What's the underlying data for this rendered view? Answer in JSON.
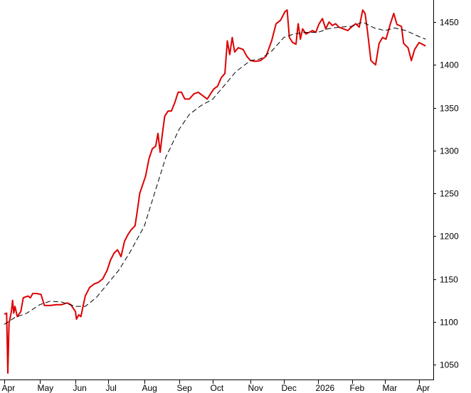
{
  "chart_data": {
    "type": "line",
    "title": "",
    "xlabel": "",
    "ylabel": "",
    "ylim": [
      1040,
      1470
    ],
    "y_ticks": [
      1050,
      1100,
      1150,
      1200,
      1250,
      1300,
      1350,
      1400,
      1450
    ],
    "y_tick_labels": [
      "1050",
      "1100",
      "1150",
      "1200",
      "1250",
      "1300",
      "1350",
      "1400",
      "1450"
    ],
    "x_tick_labels": [
      "Apr",
      "May",
      "Jun",
      "Jul",
      "Aug",
      "Sep",
      "Oct",
      "Nov",
      "Dec",
      "2026",
      "Feb",
      "Mar",
      "Apr"
    ],
    "x_tick_dates": [
      "2025-04-01",
      "2025-05-01",
      "2025-06-01",
      "2025-07-01",
      "2025-08-01",
      "2025-09-01",
      "2025-10-01",
      "2025-11-01",
      "2025-12-01",
      "2026-01-01",
      "2026-02-01",
      "2026-03-01",
      "2026-04-01"
    ],
    "y_axis_position": "right",
    "grid": false,
    "legend": "none",
    "series": [
      {
        "style": "solid",
        "color": "#dd0000",
        "points": [
          [
            "2025-04-01",
            1109
          ],
          [
            "2025-04-03",
            1110
          ],
          [
            "2025-04-04",
            1040
          ],
          [
            "2025-04-05",
            1098
          ],
          [
            "2025-04-07",
            1112
          ],
          [
            "2025-04-08",
            1125
          ],
          [
            "2025-04-09",
            1110
          ],
          [
            "2025-04-10",
            1118
          ],
          [
            "2025-04-12",
            1106
          ],
          [
            "2025-04-15",
            1112
          ],
          [
            "2025-04-17",
            1128
          ],
          [
            "2025-04-21",
            1130
          ],
          [
            "2025-04-23",
            1128
          ],
          [
            "2025-04-25",
            1133
          ],
          [
            "2025-04-28",
            1133
          ],
          [
            "2025-05-02",
            1132
          ],
          [
            "2025-05-05",
            1119
          ],
          [
            "2025-05-10",
            1119
          ],
          [
            "2025-05-15",
            1120
          ],
          [
            "2025-05-20",
            1120
          ],
          [
            "2025-05-25",
            1122
          ],
          [
            "2025-05-28",
            1120
          ],
          [
            "2025-06-01",
            1112
          ],
          [
            "2025-06-02",
            1103
          ],
          [
            "2025-06-04",
            1108
          ],
          [
            "2025-06-06",
            1106
          ],
          [
            "2025-06-08",
            1118
          ],
          [
            "2025-06-10",
            1130
          ],
          [
            "2025-06-14",
            1140
          ],
          [
            "2025-06-18",
            1144
          ],
          [
            "2025-06-22",
            1146
          ],
          [
            "2025-06-26",
            1150
          ],
          [
            "2025-06-30",
            1160
          ],
          [
            "2025-07-03",
            1172
          ],
          [
            "2025-07-06",
            1180
          ],
          [
            "2025-07-09",
            1184
          ],
          [
            "2025-07-12",
            1176
          ],
          [
            "2025-07-15",
            1194
          ],
          [
            "2025-07-18",
            1202
          ],
          [
            "2025-07-21",
            1208
          ],
          [
            "2025-07-24",
            1212
          ],
          [
            "2025-07-26",
            1230
          ],
          [
            "2025-07-28",
            1250
          ],
          [
            "2025-07-30",
            1258
          ],
          [
            "2025-08-02",
            1270
          ],
          [
            "2025-08-05",
            1290
          ],
          [
            "2025-08-08",
            1302
          ],
          [
            "2025-08-11",
            1305
          ],
          [
            "2025-08-13",
            1320
          ],
          [
            "2025-08-15",
            1298
          ],
          [
            "2025-08-17",
            1320
          ],
          [
            "2025-08-19",
            1340
          ],
          [
            "2025-08-22",
            1346
          ],
          [
            "2025-08-25",
            1346
          ],
          [
            "2025-08-28",
            1356
          ],
          [
            "2025-08-31",
            1368
          ],
          [
            "2025-09-03",
            1368
          ],
          [
            "2025-09-06",
            1360
          ],
          [
            "2025-09-10",
            1360
          ],
          [
            "2025-09-14",
            1366
          ],
          [
            "2025-09-18",
            1368
          ],
          [
            "2025-09-22",
            1364
          ],
          [
            "2025-09-26",
            1360
          ],
          [
            "2025-09-30",
            1368
          ],
          [
            "2025-10-02",
            1372
          ],
          [
            "2025-10-05",
            1375
          ],
          [
            "2025-10-08",
            1385
          ],
          [
            "2025-10-11",
            1390
          ],
          [
            "2025-10-13",
            1428
          ],
          [
            "2025-10-15",
            1412
          ],
          [
            "2025-10-17",
            1432
          ],
          [
            "2025-10-19",
            1415
          ],
          [
            "2025-10-22",
            1420
          ],
          [
            "2025-10-26",
            1418
          ],
          [
            "2025-10-29",
            1410
          ],
          [
            "2025-11-01",
            1405
          ],
          [
            "2025-11-05",
            1404
          ],
          [
            "2025-11-10",
            1405
          ],
          [
            "2025-11-15",
            1410
          ],
          [
            "2025-11-20",
            1428
          ],
          [
            "2025-11-24",
            1448
          ],
          [
            "2025-11-28",
            1452
          ],
          [
            "2025-12-02",
            1462
          ],
          [
            "2025-12-04",
            1464
          ],
          [
            "2025-12-06",
            1432
          ],
          [
            "2025-12-09",
            1426
          ],
          [
            "2025-12-12",
            1424
          ],
          [
            "2025-12-14",
            1448
          ],
          [
            "2025-12-16",
            1430
          ],
          [
            "2025-12-18",
            1442
          ],
          [
            "2025-12-21",
            1436
          ],
          [
            "2025-12-24",
            1438
          ],
          [
            "2025-12-27",
            1440
          ],
          [
            "2025-12-30",
            1438
          ],
          [
            "2026-01-02",
            1448
          ],
          [
            "2026-01-05",
            1454
          ],
          [
            "2026-01-08",
            1442
          ],
          [
            "2026-01-11",
            1450
          ],
          [
            "2026-01-14",
            1446
          ],
          [
            "2026-01-17",
            1448
          ],
          [
            "2026-01-20",
            1444
          ],
          [
            "2026-01-24",
            1442
          ],
          [
            "2026-01-28",
            1440
          ],
          [
            "2026-02-01",
            1445
          ],
          [
            "2026-02-04",
            1448
          ],
          [
            "2026-02-07",
            1444
          ],
          [
            "2026-02-10",
            1464
          ],
          [
            "2026-02-12",
            1460
          ],
          [
            "2026-02-14",
            1440
          ],
          [
            "2026-02-17",
            1405
          ],
          [
            "2026-02-21",
            1400
          ],
          [
            "2026-02-24",
            1425
          ],
          [
            "2026-02-27",
            1432
          ],
          [
            "2026-03-02",
            1430
          ],
          [
            "2026-03-06",
            1448
          ],
          [
            "2026-03-09",
            1460
          ],
          [
            "2026-03-12",
            1447
          ],
          [
            "2026-03-16",
            1445
          ],
          [
            "2026-03-18",
            1425
          ],
          [
            "2026-03-22",
            1420
          ],
          [
            "2026-03-25",
            1405
          ],
          [
            "2026-03-28",
            1418
          ],
          [
            "2026-04-01",
            1426
          ],
          [
            "2026-04-04",
            1424
          ],
          [
            "2026-04-07",
            1422
          ]
        ]
      },
      {
        "style": "dashed",
        "color": "#000000",
        "points": [
          [
            "2025-04-01",
            1097
          ],
          [
            "2025-04-10",
            1105
          ],
          [
            "2025-04-20",
            1110
          ],
          [
            "2025-05-01",
            1120
          ],
          [
            "2025-05-10",
            1124
          ],
          [
            "2025-05-20",
            1123
          ],
          [
            "2025-06-01",
            1118
          ],
          [
            "2025-06-10",
            1118
          ],
          [
            "2025-06-20",
            1128
          ],
          [
            "2025-07-01",
            1145
          ],
          [
            "2025-07-10",
            1160
          ],
          [
            "2025-07-20",
            1182
          ],
          [
            "2025-08-01",
            1212
          ],
          [
            "2025-08-10",
            1250
          ],
          [
            "2025-08-20",
            1292
          ],
          [
            "2025-09-01",
            1325
          ],
          [
            "2025-09-10",
            1342
          ],
          [
            "2025-09-20",
            1352
          ],
          [
            "2025-10-01",
            1360
          ],
          [
            "2025-10-10",
            1375
          ],
          [
            "2025-10-20",
            1392
          ],
          [
            "2025-11-01",
            1405
          ],
          [
            "2025-11-10",
            1407
          ],
          [
            "2025-11-20",
            1416
          ],
          [
            "2025-12-01",
            1432
          ],
          [
            "2025-12-10",
            1436
          ],
          [
            "2025-12-20",
            1438
          ],
          [
            "2026-01-01",
            1438
          ],
          [
            "2026-01-10",
            1442
          ],
          [
            "2026-01-20",
            1444
          ],
          [
            "2026-02-01",
            1445
          ],
          [
            "2026-02-10",
            1450
          ],
          [
            "2026-02-20",
            1443
          ],
          [
            "2026-03-01",
            1440
          ],
          [
            "2026-03-10",
            1443
          ],
          [
            "2026-03-20",
            1440
          ],
          [
            "2026-04-01",
            1433
          ],
          [
            "2026-04-07",
            1430
          ]
        ]
      }
    ]
  }
}
